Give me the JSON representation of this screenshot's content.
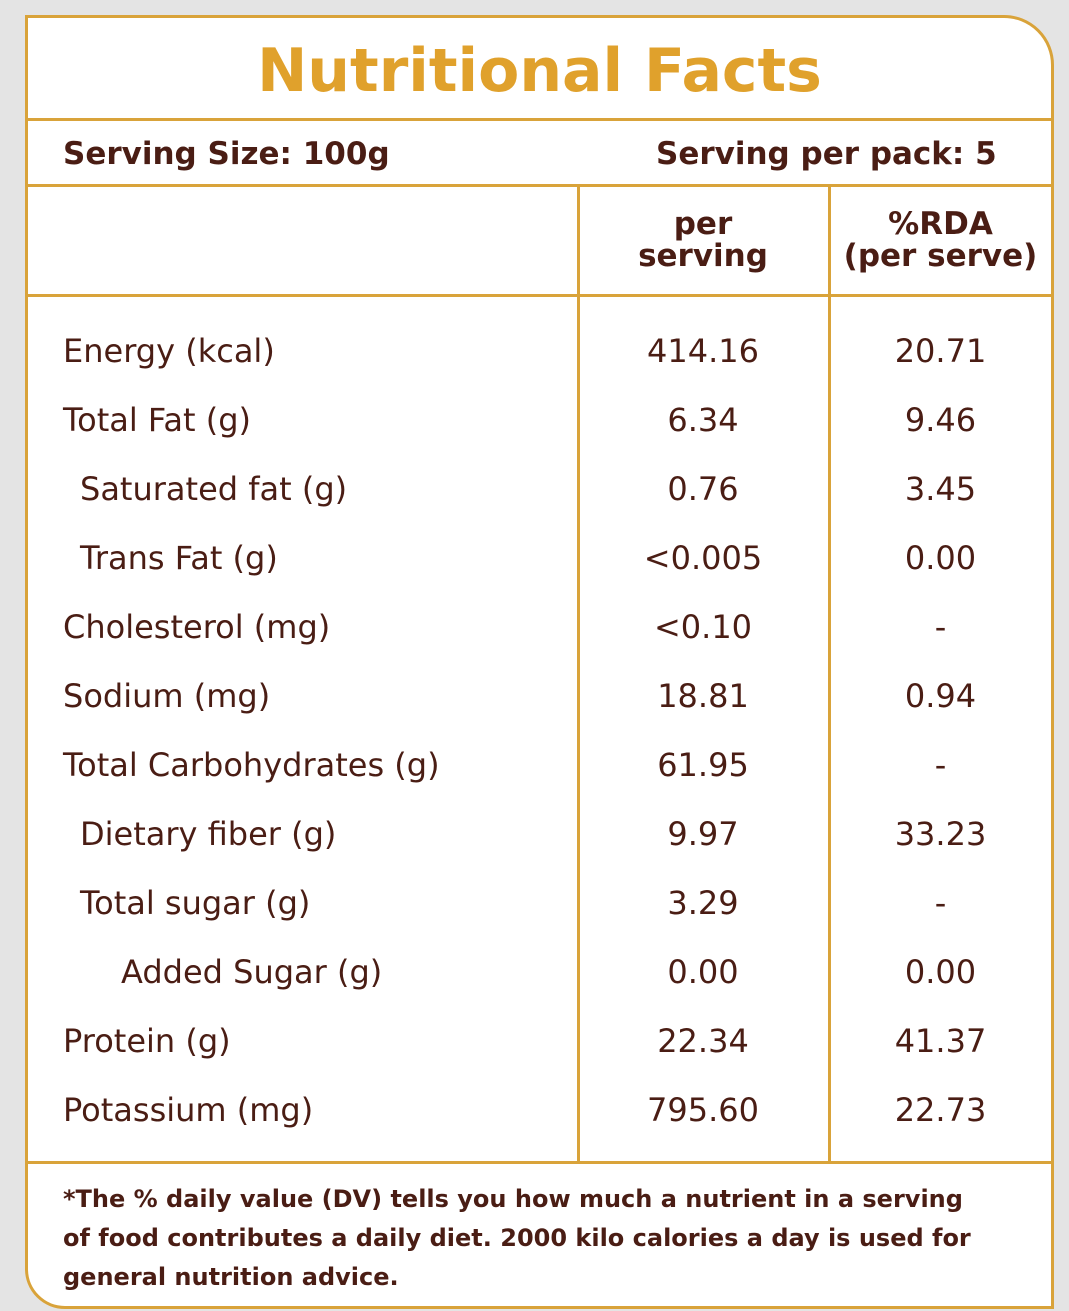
{
  "title": "Nutritional Facts",
  "serving_size": "Serving Size: 100g",
  "servings_per_pack": "Serving per pack: 5",
  "table": {
    "header": [
      [
        "per",
        "serving"
      ],
      [
        "%RDA",
        "(per serve)"
      ]
    ],
    "rows": [
      [
        "Energy (kcal)",
        "414.16",
        "20.71"
      ],
      [
        "Total Fat (g)",
        "6.34",
        "9.46"
      ],
      [
        "Saturated fat (g)",
        "0.76",
        "3.45"
      ],
      [
        "Trans Fat (g)",
        "<0.005",
        "0.00"
      ],
      [
        "Cholesterol (mg)",
        "<0.10",
        "-"
      ],
      [
        "Sodium (mg)",
        "18.81",
        "0.94"
      ],
      [
        "Total Carbohydrates  (g)",
        "61.95",
        "-"
      ],
      [
        "Dietary fiber (g)",
        "9.97",
        "33.23"
      ],
      [
        "Total sugar (g)",
        "3.29",
        "-"
      ],
      [
        "Added Sugar (g)",
        "0.00",
        "0.00"
      ],
      [
        "Protein (g)",
        "22.34",
        "41.37"
      ],
      [
        "Potassium (mg)",
        "795.60",
        "22.73"
      ]
    ]
  },
  "footnote": [
    "*The % daily value (DV) tells you how much a nutrient in a serving",
    "of food contributes a daily diet. 2000 kilo calories a day is used for",
    "general nutrition advice."
  ]
}
